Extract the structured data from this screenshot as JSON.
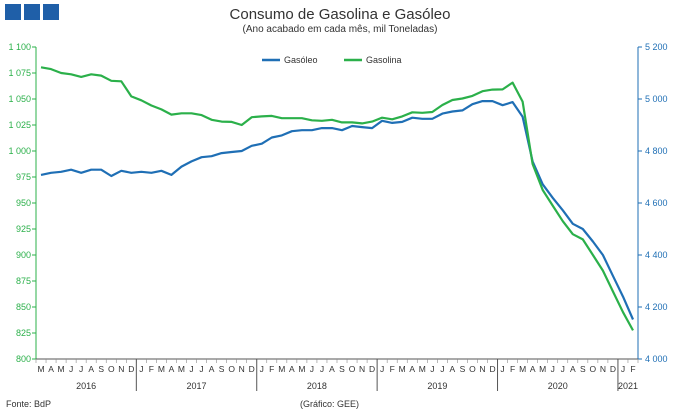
{
  "brand": {
    "colors": [
      "#1f5fa8",
      "#1f5fa8",
      "#1f5fa8"
    ]
  },
  "title": "Consumo de Gasolina e Gasóleo",
  "subtitle": "(Ano acabado em cada mês,  mil Toneladas)",
  "footer": {
    "source": "Fonte: BdP",
    "graph": "(Gráfico: GEE)"
  },
  "chart_data": {
    "type": "line",
    "y_left": {
      "min": 800,
      "max": 1100,
      "step": 25,
      "tick_labels": [
        "800",
        "825",
        "850",
        "875",
        "900",
        "925",
        "950",
        "975",
        "1 000",
        "1 025",
        "1 050",
        "1 075",
        "1 100"
      ]
    },
    "y_right": {
      "min": 4000,
      "max": 5200,
      "step": 200,
      "tick_labels": [
        "4 000",
        "4 200",
        "4 400",
        "4 600",
        "4 800",
        "5 000",
        "5 200"
      ]
    },
    "month_labels": [
      "M",
      "A",
      "M",
      "J",
      "J",
      "A",
      "S",
      "O",
      "N",
      "D",
      "J",
      "F",
      "M",
      "A",
      "M",
      "J",
      "J",
      "A",
      "S",
      "O",
      "N",
      "D",
      "J",
      "F",
      "M",
      "A",
      "M",
      "J",
      "J",
      "A",
      "S",
      "O",
      "N",
      "D",
      "J",
      "F",
      "M",
      "A",
      "M",
      "J",
      "J",
      "A",
      "S",
      "O",
      "N",
      "D",
      "J",
      "F",
      "M",
      "A",
      "M",
      "J",
      "J",
      "A",
      "S",
      "O",
      "N",
      "D",
      "J",
      "F"
    ],
    "year_labels": [
      {
        "label": "2016",
        "start": 0,
        "end": 9
      },
      {
        "label": "2017",
        "start": 10,
        "end": 21
      },
      {
        "label": "2018",
        "start": 22,
        "end": 33
      },
      {
        "label": "2019",
        "start": 34,
        "end": 45
      },
      {
        "label": "2020",
        "start": 46,
        "end": 57
      },
      {
        "label": "2021",
        "start": 58,
        "end": 59
      }
    ],
    "legend_position": "top-center",
    "series": [
      {
        "name": "Gasóleo",
        "axis": "left",
        "color": "#1f6fb5",
        "values": [
          977,
          979,
          980,
          982,
          979,
          982,
          982,
          976,
          981,
          979,
          980,
          979,
          981,
          977,
          985,
          990,
          994,
          995,
          998,
          999,
          1000,
          1005,
          1007,
          1013,
          1015,
          1019,
          1020,
          1020,
          1022,
          1022,
          1020,
          1024,
          1023,
          1022,
          1029,
          1027,
          1028,
          1032,
          1031,
          1031,
          1036,
          1038,
          1039,
          1045,
          1048,
          1048,
          1044,
          1047,
          1033,
          990,
          968,
          955,
          943,
          930,
          925,
          913,
          900,
          880,
          860,
          838
        ]
      },
      {
        "name": "Gasolina",
        "axis": "right",
        "color": "#2bb04a",
        "values": [
          5122,
          5115,
          5100,
          5095,
          5085,
          5095,
          5090,
          5070,
          5068,
          5010,
          4995,
          4975,
          4960,
          4940,
          4945,
          4945,
          4938,
          4920,
          4913,
          4912,
          4900,
          4930,
          4933,
          4935,
          4926,
          4926,
          4926,
          4918,
          4916,
          4920,
          4910,
          4910,
          4906,
          4913,
          4928,
          4922,
          4933,
          4949,
          4947,
          4950,
          4977,
          4996,
          5002,
          5012,
          5030,
          5036,
          5037,
          5063,
          4990,
          4750,
          4650,
          4590,
          4530,
          4480,
          4460,
          4400,
          4340,
          4260,
          4180,
          4110
        ]
      }
    ]
  }
}
